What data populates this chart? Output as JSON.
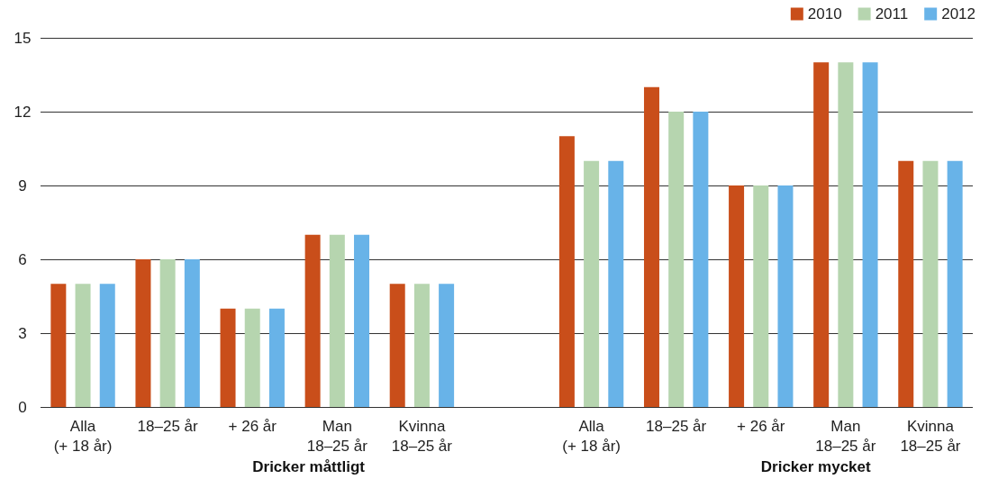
{
  "chart_data": {
    "type": "bar",
    "categories": [
      "Alla\n(+ 18 år)",
      "18–25 år",
      "+ 26 år",
      "Man\n18–25 år",
      "Kvinna\n18–25 år",
      null,
      "Alla\n(+ 18 år)",
      "18–25 år",
      "+ 26 år",
      "Man\n18–25 år",
      "Kvinna\n18–25 år"
    ],
    "series": [
      {
        "name": "2010",
        "color": "#c94e1a",
        "values": [
          5,
          6,
          4,
          7,
          5,
          null,
          11,
          13,
          9,
          14,
          10
        ]
      },
      {
        "name": "2011",
        "color": "#b6d5af",
        "values": [
          5,
          6,
          4,
          7,
          5,
          null,
          10,
          12,
          9,
          14,
          10
        ]
      },
      {
        "name": "2012",
        "color": "#68b3e8",
        "values": [
          5,
          6,
          4,
          7,
          5,
          null,
          10,
          12,
          9,
          14,
          10
        ]
      }
    ],
    "ylim": [
      0,
      15
    ],
    "yticks": [
      0,
      3,
      6,
      9,
      12,
      15
    ],
    "grid": "y",
    "legend": "top right",
    "annotations": [
      "Dricker måttligt",
      "Dricker mycket"
    ]
  }
}
